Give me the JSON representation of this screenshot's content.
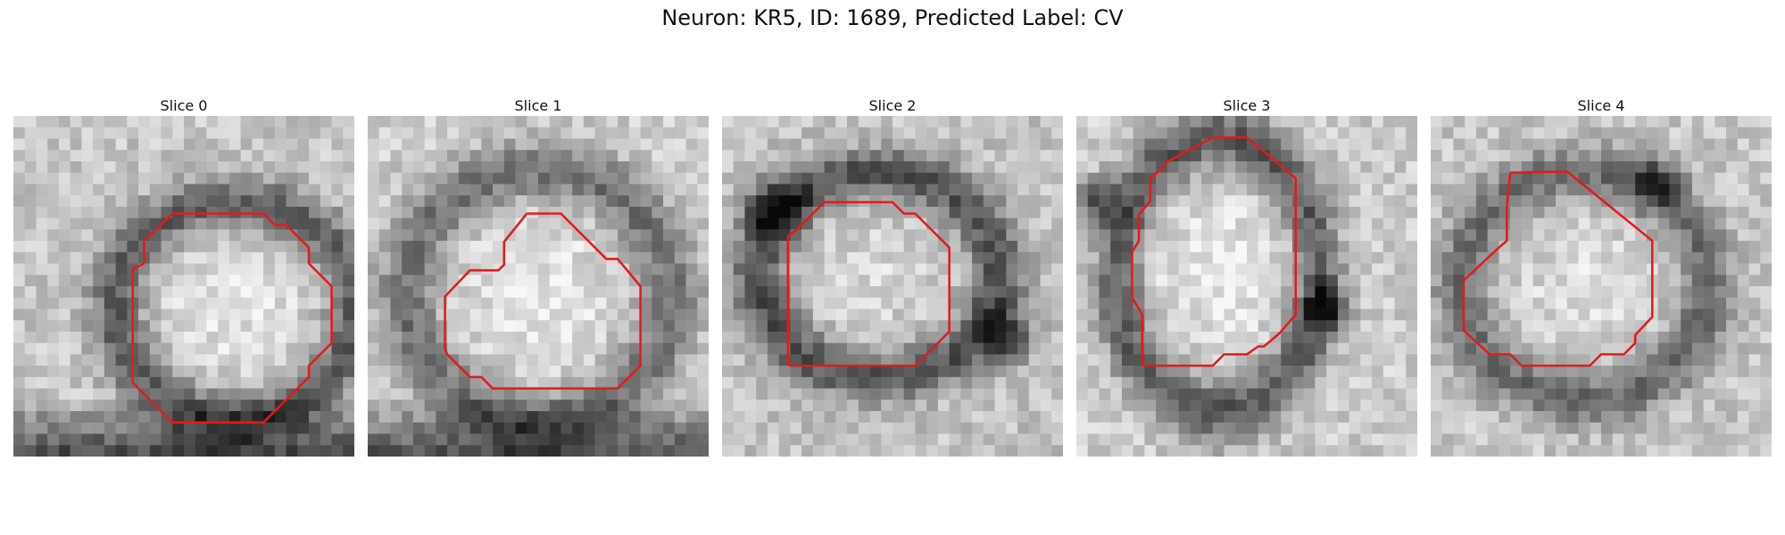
{
  "figure": {
    "title": "Neuron: KR5, ID: 1689, Predicted Label: CV"
  },
  "panels": [
    {
      "title": "Slice 0"
    },
    {
      "title": "Slice 1"
    },
    {
      "title": "Slice 2"
    },
    {
      "title": "Slice 3"
    },
    {
      "title": "Slice 4"
    }
  ],
  "colors": {
    "contour": "#e41a1c",
    "background": "#ffffff"
  }
}
